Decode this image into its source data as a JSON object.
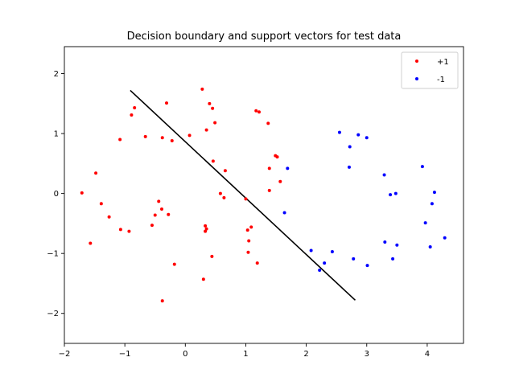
{
  "chart_data": {
    "type": "scatter",
    "title": "Decision boundary and support vectors for test data",
    "xlabel": "",
    "ylabel": "",
    "xlim": [
      -2.0,
      4.6
    ],
    "ylim": [
      -2.5,
      2.45
    ],
    "xticks": [
      -2,
      -1,
      0,
      1,
      2,
      3,
      4
    ],
    "yticks": [
      -2,
      -1,
      0,
      1,
      2
    ],
    "grid": false,
    "legend_position": "upper right",
    "series": [
      {
        "name": "+1",
        "color": "#ff0000",
        "points": [
          [
            -1.71,
            0.01
          ],
          [
            -1.57,
            -0.83
          ],
          [
            -1.48,
            0.34
          ],
          [
            -1.39,
            -0.17
          ],
          [
            -1.26,
            -0.39
          ],
          [
            -1.08,
            0.9
          ],
          [
            -1.07,
            -0.6
          ],
          [
            -0.93,
            -0.63
          ],
          [
            -0.89,
            1.31
          ],
          [
            -0.84,
            1.43
          ],
          [
            -0.66,
            0.95
          ],
          [
            -0.55,
            -0.53
          ],
          [
            -0.5,
            -0.36
          ],
          [
            -0.44,
            -0.13
          ],
          [
            -0.38,
            0.93
          ],
          [
            -0.39,
            -0.26
          ],
          [
            -0.38,
            -1.79
          ],
          [
            -0.31,
            1.51
          ],
          [
            -0.28,
            -0.35
          ],
          [
            -0.22,
            0.88
          ],
          [
            -0.18,
            -1.18
          ],
          [
            0.07,
            0.97
          ],
          [
            0.28,
            1.74
          ],
          [
            0.3,
            -1.43
          ],
          [
            0.33,
            -0.63
          ],
          [
            0.33,
            -0.54
          ],
          [
            0.35,
            -0.59
          ],
          [
            0.35,
            1.06
          ],
          [
            0.4,
            1.5
          ],
          [
            0.44,
            -1.05
          ],
          [
            0.45,
            1.42
          ],
          [
            0.46,
            0.54
          ],
          [
            0.49,
            1.18
          ],
          [
            0.58,
            0.0
          ],
          [
            0.64,
            -0.07
          ],
          [
            0.66,
            0.38
          ],
          [
            1.0,
            -0.09
          ],
          [
            1.03,
            -0.61
          ],
          [
            1.04,
            -0.98
          ],
          [
            1.05,
            -0.79
          ],
          [
            1.09,
            -0.56
          ],
          [
            1.17,
            1.38
          ],
          [
            1.19,
            -1.16
          ],
          [
            1.22,
            1.36
          ],
          [
            1.37,
            1.17
          ],
          [
            1.39,
            0.42
          ],
          [
            1.39,
            0.05
          ],
          [
            1.49,
            0.63
          ],
          [
            1.52,
            0.61
          ],
          [
            1.57,
            0.2
          ]
        ]
      },
      {
        "name": "-1",
        "color": "#0000ff",
        "points": [
          [
            1.64,
            -0.32
          ],
          [
            1.69,
            0.42
          ],
          [
            2.08,
            -0.95
          ],
          [
            2.22,
            -1.28
          ],
          [
            2.3,
            -1.16
          ],
          [
            2.43,
            -0.97
          ],
          [
            2.55,
            1.02
          ],
          [
            2.71,
            0.44
          ],
          [
            2.72,
            0.78
          ],
          [
            2.78,
            -1.09
          ],
          [
            2.86,
            0.98
          ],
          [
            3.0,
            0.93
          ],
          [
            3.01,
            -1.2
          ],
          [
            3.29,
            0.31
          ],
          [
            3.3,
            -0.81
          ],
          [
            3.39,
            -0.02
          ],
          [
            3.43,
            -1.09
          ],
          [
            3.48,
            0.0
          ],
          [
            3.5,
            -0.86
          ],
          [
            3.92,
            0.45
          ],
          [
            3.97,
            -0.49
          ],
          [
            4.05,
            -0.89
          ],
          [
            4.08,
            -0.17
          ],
          [
            4.12,
            0.02
          ],
          [
            4.29,
            -0.74
          ]
        ]
      }
    ],
    "decision_boundary": {
      "color": "#000000",
      "points": [
        [
          -0.91,
          1.72
        ],
        [
          2.81,
          -1.78
        ]
      ]
    }
  }
}
